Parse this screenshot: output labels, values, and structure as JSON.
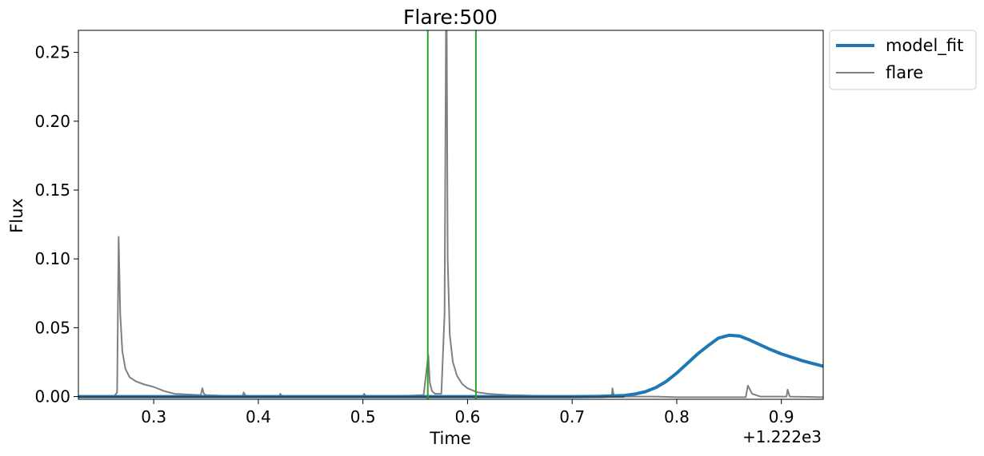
{
  "chart_data": {
    "type": "line",
    "title": "Flare:500",
    "xlabel": "Time",
    "ylabel": "Flux",
    "x_offset_label": "+1.222e3",
    "xlim": [
      0.228,
      0.94
    ],
    "ylim": [
      -0.002,
      0.266
    ],
    "xticks": [
      0.3,
      0.4,
      0.5,
      0.6,
      0.7,
      0.8,
      0.9
    ],
    "xtick_labels": [
      "0.3",
      "0.4",
      "0.5",
      "0.6",
      "0.7",
      "0.8",
      "0.9"
    ],
    "yticks": [
      0.0,
      0.05,
      0.1,
      0.15,
      0.2,
      0.25
    ],
    "ytick_labels": [
      "0.00",
      "0.05",
      "0.10",
      "0.15",
      "0.20",
      "0.25"
    ],
    "grid": false,
    "legend_position": "outside-top-right",
    "vertical_lines": [
      {
        "x": 0.562,
        "color": "#2ca02c"
      },
      {
        "x": 0.608,
        "color": "#2ca02c"
      }
    ],
    "series": [
      {
        "name": "model_fit",
        "color": "#1f77b4",
        "x": [
          0.228,
          0.7,
          0.73,
          0.75,
          0.76,
          0.77,
          0.78,
          0.79,
          0.8,
          0.81,
          0.82,
          0.83,
          0.84,
          0.85,
          0.86,
          0.87,
          0.88,
          0.89,
          0.9,
          0.91,
          0.92,
          0.93,
          0.94
        ],
        "y": [
          0.0,
          0.0,
          0.0002,
          0.0008,
          0.0018,
          0.0035,
          0.0065,
          0.011,
          0.017,
          0.024,
          0.031,
          0.037,
          0.0425,
          0.0445,
          0.044,
          0.041,
          0.0375,
          0.034,
          0.031,
          0.0285,
          0.026,
          0.024,
          0.022
        ]
      },
      {
        "name": "flare",
        "color": "#808080",
        "x": [
          0.228,
          0.262,
          0.265,
          0.2665,
          0.268,
          0.27,
          0.273,
          0.277,
          0.283,
          0.29,
          0.3,
          0.31,
          0.32,
          0.345,
          0.3465,
          0.348,
          0.35,
          0.385,
          0.386,
          0.388,
          0.42,
          0.421,
          0.423,
          0.5,
          0.501,
          0.503,
          0.52,
          0.558,
          0.5625,
          0.564,
          0.566,
          0.569,
          0.575,
          0.578,
          0.5795,
          0.58,
          0.581,
          0.583,
          0.586,
          0.59,
          0.595,
          0.6,
          0.61,
          0.62,
          0.64,
          0.7,
          0.738,
          0.7385,
          0.74,
          0.78,
          0.8,
          0.85,
          0.866,
          0.868,
          0.872,
          0.88,
          0.905,
          0.906,
          0.908,
          0.94
        ],
        "y": [
          0.0,
          0.0,
          0.003,
          0.116,
          0.06,
          0.033,
          0.02,
          0.014,
          0.011,
          0.009,
          0.007,
          0.004,
          0.002,
          0.001,
          0.006,
          0.002,
          0.001,
          0.0,
          0.003,
          0.0005,
          0.0,
          0.002,
          0.0,
          0.0,
          0.002,
          0.0,
          0.0,
          0.001,
          0.03,
          0.01,
          0.004,
          0.002,
          0.002,
          0.06,
          0.28,
          0.28,
          0.1,
          0.045,
          0.025,
          0.015,
          0.009,
          0.006,
          0.003,
          0.002,
          0.001,
          0.0,
          0.001,
          0.006,
          0.0,
          0.0,
          -0.0005,
          -0.0005,
          -0.0005,
          0.008,
          0.002,
          0.0,
          0.0,
          0.005,
          0.0,
          -0.0005
        ]
      }
    ]
  }
}
